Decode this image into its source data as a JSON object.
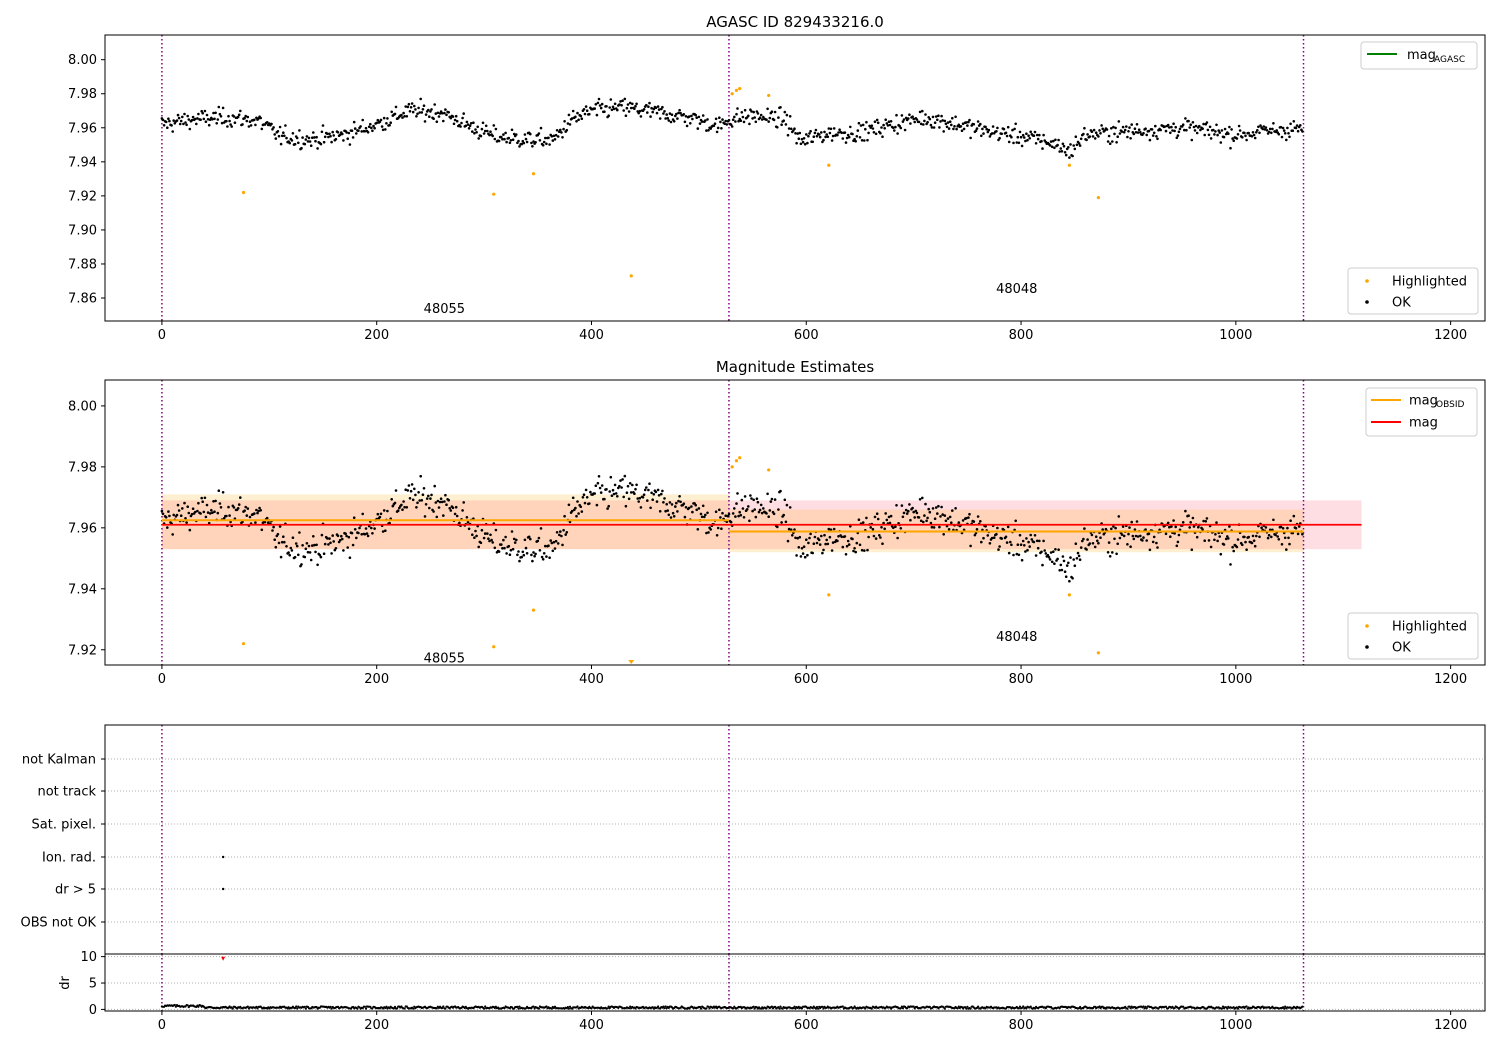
{
  "figure": {
    "title_top": "AGASC ID 829433216.0",
    "title_middle": "Magnitude Estimates"
  },
  "chart_data": [
    {
      "type": "scatter",
      "title": "AGASC ID 829433216.0",
      "xlim": [
        -53,
        1232
      ],
      "ylim": [
        7.8465,
        8.0145
      ],
      "xticks": [
        0,
        200,
        400,
        600,
        800,
        1000,
        1200
      ],
      "yticks": [
        7.86,
        7.88,
        7.9,
        7.92,
        7.94,
        7.96,
        7.98,
        8.0
      ],
      "ytick_labels": [
        "7.86",
        "7.88",
        "7.90",
        "7.92",
        "7.94",
        "7.96",
        "7.98",
        "8.00"
      ],
      "xtick_labels": [
        "0",
        "200",
        "400",
        "600",
        "800",
        "1000",
        "1200"
      ],
      "obsid_boundaries": [
        0,
        528,
        1063
      ],
      "obsid_labels": [
        {
          "text": "48055",
          "x": 263,
          "y": 7.854
        },
        {
          "text": "48048",
          "x": 796,
          "y": 7.866
        }
      ],
      "legend_upper": [
        {
          "label": "mag",
          "sub": "AGASC",
          "color": "#008000",
          "kind": "line"
        }
      ],
      "legend_lower": [
        {
          "label": "Highlighted",
          "color": "#ffa500",
          "kind": "dot"
        },
        {
          "label": "OK",
          "color": "#000000",
          "kind": "dot"
        }
      ],
      "ok_trend": {
        "description_points": [
          [
            0,
            7.962
          ],
          [
            30,
            7.965
          ],
          [
            60,
            7.966
          ],
          [
            90,
            7.964
          ],
          [
            110,
            7.955
          ],
          [
            140,
            7.953
          ],
          [
            170,
            7.956
          ],
          [
            200,
            7.962
          ],
          [
            230,
            7.97
          ],
          [
            260,
            7.969
          ],
          [
            290,
            7.96
          ],
          [
            310,
            7.955
          ],
          [
            340,
            7.953
          ],
          [
            365,
            7.953
          ],
          [
            380,
            7.964
          ],
          [
            400,
            7.97
          ],
          [
            430,
            7.972
          ],
          [
            460,
            7.969
          ],
          [
            490,
            7.966
          ],
          [
            520,
            7.961
          ],
          [
            528,
            7.965
          ],
          [
            550,
            7.967
          ],
          [
            580,
            7.965
          ],
          [
            595,
            7.952
          ],
          [
            620,
            7.957
          ],
          [
            650,
            7.957
          ],
          [
            680,
            7.962
          ],
          [
            710,
            7.966
          ],
          [
            740,
            7.962
          ],
          [
            770,
            7.958
          ],
          [
            800,
            7.955
          ],
          [
            830,
            7.951
          ],
          [
            845,
            7.946
          ],
          [
            860,
            7.956
          ],
          [
            900,
            7.958
          ],
          [
            950,
            7.96
          ],
          [
            1000,
            7.956
          ],
          [
            1030,
            7.958
          ],
          [
            1063,
            7.96
          ]
        ],
        "n_points": 1063,
        "noise": 0.005,
        "color": "#000000"
      },
      "highlighted": [
        {
          "x": 76,
          "y": 7.922
        },
        {
          "x": 309,
          "y": 7.921
        },
        {
          "x": 346,
          "y": 7.933
        },
        {
          "x": 437,
          "y": 7.873
        },
        {
          "x": 531,
          "y": 7.98
        },
        {
          "x": 535,
          "y": 7.982
        },
        {
          "x": 538,
          "y": 7.983
        },
        {
          "x": 565,
          "y": 7.979
        },
        {
          "x": 621,
          "y": 7.938
        },
        {
          "x": 845,
          "y": 7.938
        },
        {
          "x": 872,
          "y": 7.919
        }
      ]
    },
    {
      "type": "scatter",
      "title": "Magnitude Estimates",
      "xlim": [
        -53,
        1232
      ],
      "ylim": [
        7.915,
        8.0085
      ],
      "xticks": [
        0,
        200,
        400,
        600,
        800,
        1000,
        1200
      ],
      "yticks": [
        7.92,
        7.94,
        7.96,
        7.98,
        8.0
      ],
      "ytick_labels": [
        "7.92",
        "7.94",
        "7.96",
        "7.98",
        "8.00"
      ],
      "xtick_labels": [
        "0",
        "200",
        "400",
        "600",
        "800",
        "1000",
        "1200"
      ],
      "obsid_boundaries": [
        0,
        528,
        1063
      ],
      "obsid_labels": [
        {
          "text": "48055",
          "x": 263,
          "y": 7.9175
        },
        {
          "text": "48048",
          "x": 796,
          "y": 7.9245
        }
      ],
      "legend_upper": [
        {
          "label": "mag",
          "sub": "OBSID",
          "color": "#ffa500",
          "kind": "line"
        },
        {
          "label": "mag",
          "sub": "",
          "color": "#ff0000",
          "kind": "line"
        }
      ],
      "legend_lower": [
        {
          "label": "Highlighted",
          "color": "#ffa500",
          "kind": "dot"
        },
        {
          "label": "OK",
          "color": "#000000",
          "kind": "dot"
        }
      ],
      "mag_overall": {
        "value": 7.961,
        "band": [
          7.953,
          7.969
        ],
        "x_range": [
          0,
          1117
        ],
        "color": "#ff0000"
      },
      "mag_obsid": [
        {
          "obsid": "48055",
          "value": 7.9625,
          "band": [
            7.953,
            7.971
          ],
          "x_range": [
            0,
            528
          ]
        },
        {
          "obsid": "48048",
          "value": 7.9588,
          "band": [
            7.952,
            7.966
          ],
          "x_range": [
            528,
            1063
          ]
        }
      ],
      "highlighted": [
        {
          "x": 76,
          "y": 7.922
        },
        {
          "x": 309,
          "y": 7.921
        },
        {
          "x": 346,
          "y": 7.933
        },
        {
          "x": 531,
          "y": 7.98
        },
        {
          "x": 535,
          "y": 7.982
        },
        {
          "x": 538,
          "y": 7.983
        },
        {
          "x": 565,
          "y": 7.979
        },
        {
          "x": 621,
          "y": 7.938
        },
        {
          "x": 845,
          "y": 7.938
        },
        {
          "x": 872,
          "y": 7.919
        }
      ],
      "out_of_range_marker": {
        "x": 437,
        "direction": "down",
        "color": "#ffa500"
      }
    },
    {
      "type": "scatter",
      "title": "",
      "xlim": [
        -53,
        1232
      ],
      "categories": [
        "OBS not OK",
        "dr > 5",
        "Ion. rad.",
        "Sat. pixel.",
        "not track",
        "not Kalman"
      ],
      "flag_points": [
        {
          "category": "Ion. rad.",
          "x": 57
        },
        {
          "category": "dr > 5",
          "x": 57
        }
      ],
      "obsid_boundaries": [
        0,
        528,
        1063
      ]
    },
    {
      "type": "scatter",
      "title": "",
      "xlim": [
        -53,
        1232
      ],
      "ylim": [
        -0.3,
        10.5
      ],
      "ylabel": "dr",
      "yticks": [
        0,
        5,
        10
      ],
      "ytick_labels": [
        "0",
        "5",
        "10"
      ],
      "xticks": [
        0,
        200,
        400,
        600,
        800,
        1000,
        1200
      ],
      "xtick_labels": [
        "0",
        "200",
        "400",
        "600",
        "800",
        "1000",
        "1200"
      ],
      "dr_typical": 0.35,
      "dr_spike": {
        "x": 57,
        "y": 9.6,
        "color": "#ff0000"
      },
      "obsid_boundaries": [
        0,
        528,
        1063
      ]
    }
  ]
}
